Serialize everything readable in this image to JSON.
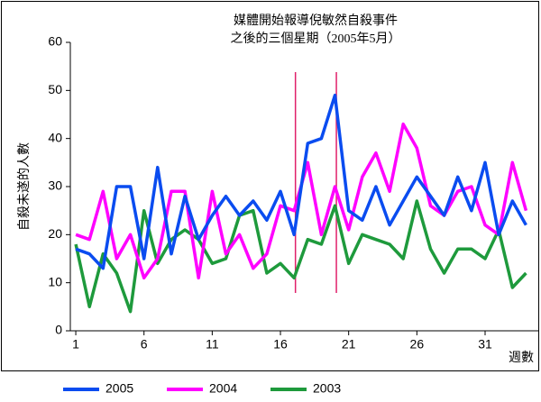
{
  "chart_data": {
    "type": "line",
    "title": [
      "媒體開始報導倪敏然自殺事件",
      "之後的三個星期（2005年5月）"
    ],
    "y_label": "自殺未遂的人數",
    "x_label": "週數",
    "x": [
      1,
      2,
      3,
      4,
      5,
      6,
      7,
      8,
      9,
      10,
      11,
      12,
      13,
      14,
      15,
      16,
      17,
      18,
      19,
      20,
      21,
      22,
      23,
      24,
      25,
      26,
      27,
      28,
      29,
      30,
      31,
      32,
      33,
      34
    ],
    "series": [
      {
        "name": "2005",
        "color": "#0a4cf0",
        "values": [
          17,
          16,
          13,
          30,
          30,
          15,
          34,
          16,
          28,
          19,
          24,
          28,
          24,
          27,
          23,
          29,
          20,
          39,
          40,
          49,
          25,
          23,
          30,
          22,
          27,
          32,
          28,
          24,
          32,
          25,
          35,
          20,
          27,
          22
        ]
      },
      {
        "name": "2004",
        "color": "#ff00ff",
        "values": [
          20,
          19,
          29,
          15,
          20,
          11,
          15,
          29,
          29,
          11,
          29,
          16,
          20,
          13,
          16,
          26,
          25,
          35,
          20,
          30,
          21,
          32,
          37,
          29,
          43,
          38,
          26,
          24,
          29,
          30,
          22,
          20,
          35,
          25
        ]
      },
      {
        "name": "2003",
        "color": "#1e9a3c",
        "values": [
          18,
          5,
          16,
          12,
          4,
          25,
          14,
          19,
          21,
          19,
          14,
          15,
          24,
          25,
          12,
          14,
          11,
          19,
          18,
          26,
          14,
          20,
          19,
          18,
          15,
          27,
          17,
          12,
          17,
          17,
          15,
          21,
          9,
          12
        ]
      }
    ],
    "markers": [
      17.1,
      20.1
    ],
    "marker_color": "#e0206a",
    "xlim": [
      0.6,
      34.9
    ],
    "xticks": [
      1,
      6,
      11,
      16,
      21,
      26,
      31
    ],
    "ylim": [
      0,
      60
    ],
    "yticks": [
      0,
      10,
      20,
      30,
      40,
      50,
      60
    ]
  }
}
